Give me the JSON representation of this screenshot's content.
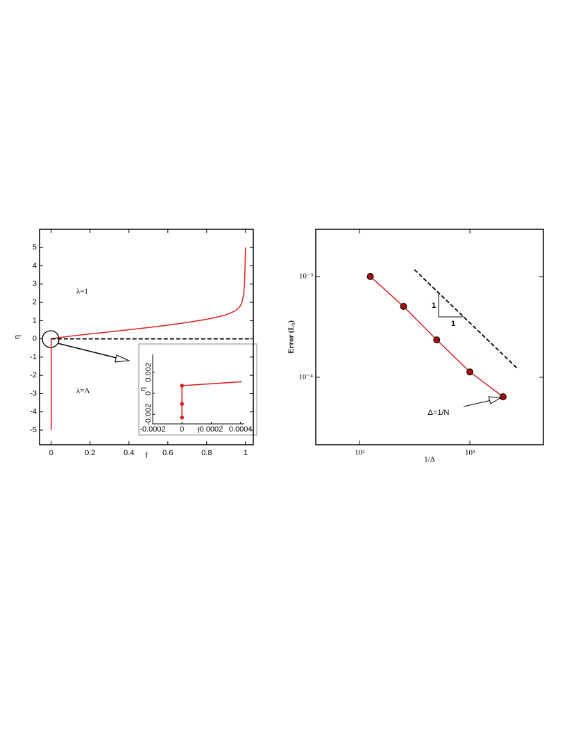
{
  "chart_data": [
    {
      "type": "line",
      "x_label": "f",
      "y_label": "η",
      "xlim": [
        -0.06,
        1.04
      ],
      "ylim": [
        -5.8,
        6
      ],
      "xticks": [
        0,
        0.2,
        0.4,
        0.6,
        0.8,
        1
      ],
      "yticks": [
        -5,
        -4,
        -3,
        -2,
        -1,
        0,
        1,
        2,
        3,
        4,
        5
      ],
      "series": [
        {
          "color": "#d42020",
          "x": [
            0,
            0,
            0.05,
            0.1,
            0.2,
            0.3,
            0.4,
            0.5,
            0.6,
            0.7,
            0.8,
            0.85,
            0.9,
            0.93,
            0.95,
            0.97,
            0.98,
            0.99,
            0.995,
            1.0
          ],
          "values": [
            -5,
            0,
            0.08,
            0.15,
            0.27,
            0.38,
            0.5,
            0.62,
            0.75,
            0.9,
            1.07,
            1.18,
            1.32,
            1.45,
            1.55,
            1.75,
            1.95,
            2.4,
            3,
            5
          ]
        },
        {
          "color": "#000000",
          "dash": true,
          "x": [
            0,
            1.03
          ],
          "values": [
            0,
            0
          ]
        }
      ],
      "annotations": [
        "λ=1",
        "λ=Λ"
      ]
    },
    {
      "type": "line",
      "x_label": "1/Δ",
      "y_label": "Error (L₂)",
      "x_log": true,
      "y_log": true,
      "xlim": [
        40,
        4640
      ],
      "ylim": [
        2.14e-05,
        0.00294
      ],
      "xticks": [
        {
          "value": 100,
          "label": "10²"
        },
        {
          "value": 1000,
          "label": "10³"
        }
      ],
      "yticks": [
        {
          "value": 0.0001,
          "label": "10⁻⁴"
        },
        {
          "value": 0.001,
          "label": "10⁻³"
        }
      ],
      "series": [
        {
          "color": "#d42020",
          "marker": true,
          "marker_color": "#a01010",
          "x": [
            125,
            250,
            500,
            1000,
            2000
          ],
          "values": [
            0.001,
            0.000505,
            0.000235,
            0.000113,
            6.4e-05
          ]
        },
        {
          "color": "#000000",
          "dash": true,
          "x": [
            314,
            2680
          ],
          "values": [
            0.00117,
            0.000123
          ]
        }
      ],
      "annotations": [
        "1",
        "1",
        "Δ=1/N"
      ]
    },
    {
      "type": "line",
      "x_label": "f",
      "y_label": "η",
      "xlim": [
        -0.0002,
        0.000425
      ],
      "ylim": [
        -0.0029,
        0.0037
      ],
      "xticks": [
        -0.0002,
        0,
        0.0002,
        0.0004
      ],
      "yticks": [
        -0.002,
        0,
        0.002
      ],
      "series": [
        {
          "color": "#d42020",
          "x": [
            0,
            0,
            0.00041
          ],
          "values": [
            -0.0023,
            0.00073,
            0.0011
          ]
        },
        {
          "color": "#d42020",
          "marker": true,
          "line": false,
          "marker_color": "#d42020",
          "x": [
            0,
            0,
            0
          ],
          "values": [
            -0.0023,
            -0.001,
            0.00073
          ]
        }
      ]
    }
  ]
}
